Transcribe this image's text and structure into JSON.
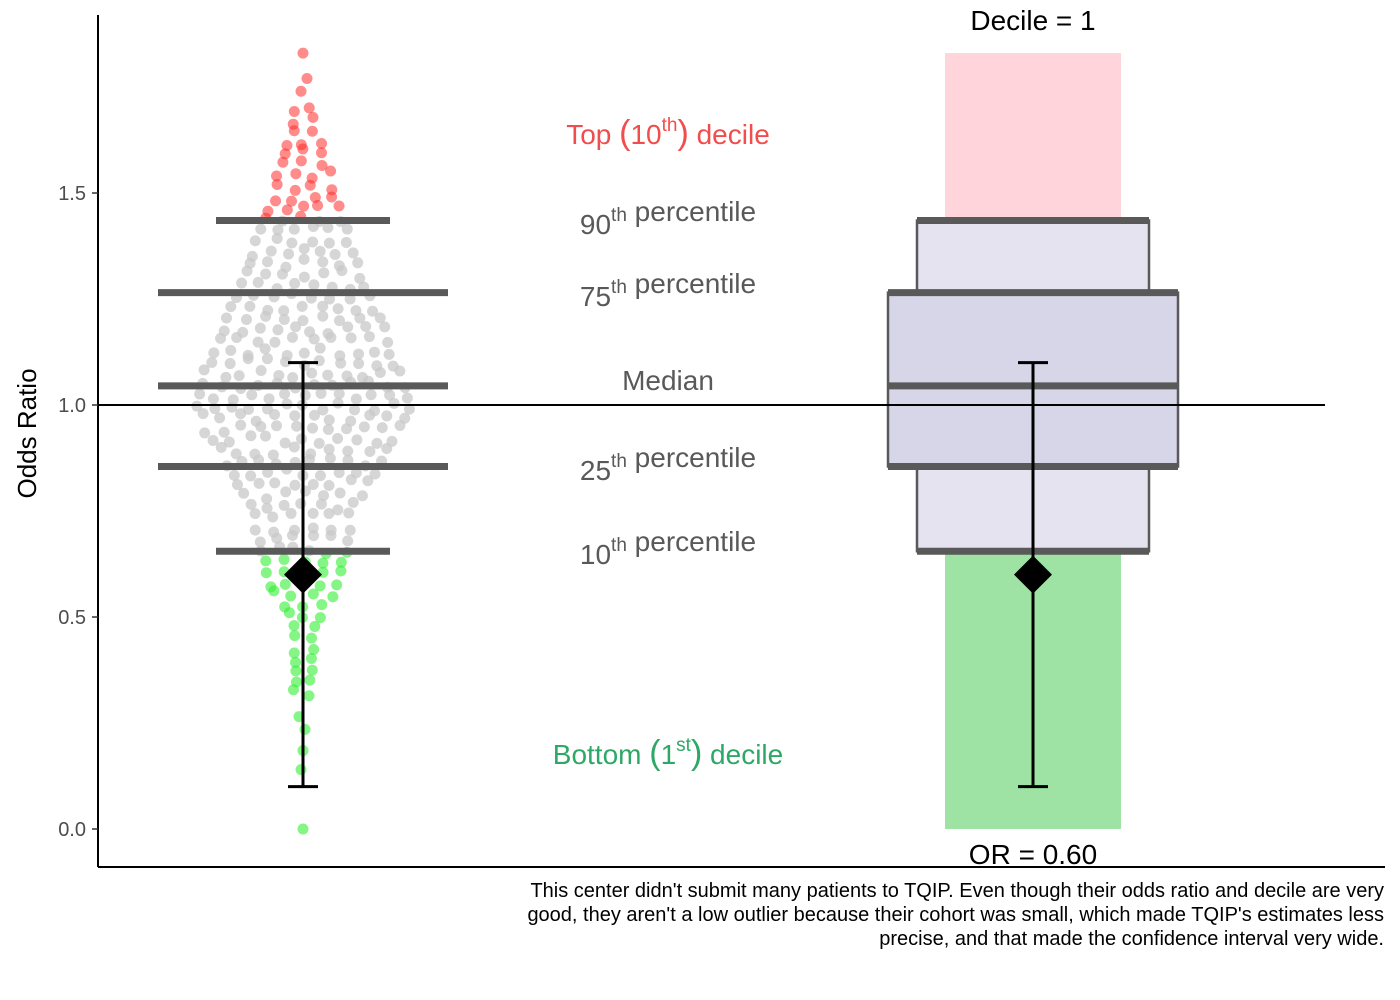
{
  "chart_data": {
    "type": "scatter",
    "ylabel": "Odds Ratio",
    "ylim": [
      -0.1,
      1.92
    ],
    "yticks": [
      0.0,
      0.5,
      1.0,
      1.5
    ],
    "ytick_labels": [
      "0.0",
      "0.5",
      "1.0",
      "1.5"
    ],
    "reference_line": 1.0,
    "percentiles": {
      "p10": 0.655,
      "p25": 0.855,
      "median": 1.045,
      "p75": 1.265,
      "p90": 1.435
    },
    "center": {
      "odds_ratio": 0.6,
      "ci_low": 0.1,
      "ci_high": 1.1,
      "decile": 1
    },
    "range": {
      "min": 0.0,
      "max": 1.83
    },
    "annotations": {
      "top_decile": {
        "pre": "Top ",
        "paren_open": "(",
        "num": "10",
        "sup": "th",
        "paren_close": ")",
        "post": " decile"
      },
      "p90": {
        "num": "90",
        "sup": "th",
        "post": " percentile"
      },
      "p75": {
        "num": "75",
        "sup": "th",
        "post": " percentile"
      },
      "median": "Median",
      "p25": {
        "num": "25",
        "sup": "th",
        "post": " percentile"
      },
      "p10": {
        "num": "10",
        "sup": "th",
        "post": " percentile"
      },
      "bottom_decile": {
        "pre": "Bottom ",
        "paren_open": "(",
        "num": "1",
        "sup": "st",
        "paren_close": ")",
        "post": " decile"
      }
    },
    "decile_label": "Decile = 1",
    "or_label": "OR = 0.60"
  },
  "colors": {
    "top_points": "#ff2b2b",
    "mid_points": "#c8c8c8",
    "bottom_points": "#33ee33",
    "top_band": "#ffd4db",
    "bottom_band": "#9ee3a4",
    "outer_box": "#e4e3ef",
    "inner_box": "#d7d6e8",
    "percentile_line": "#595959",
    "top_text": "#f24d4d",
    "bottom_text": "#2ea866",
    "percentile_text": "#595959"
  },
  "caption": "This center didn't submit many patients to TQIP. Even though their odds ratio and decile are very good, they aren't a low outlier because their cohort was small, which made TQIP's estimates less precise, and that made the confidence interval very wide."
}
